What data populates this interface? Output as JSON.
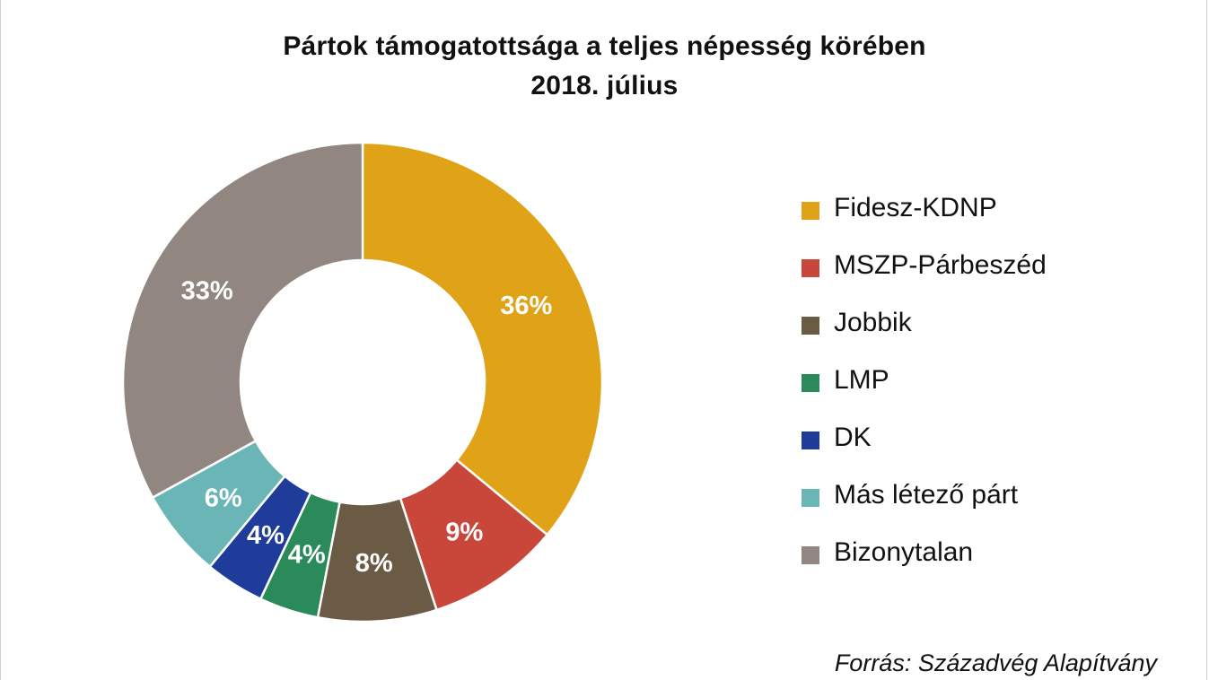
{
  "chart_data": {
    "type": "pie",
    "variant": "donut",
    "title_lines": [
      "Pártok támogatottsága a teljes népesség körében",
      "2018. július"
    ],
    "categories": [
      "Fidesz-KDNP",
      "MSZP-Párbeszéd",
      "Jobbik",
      "LMP",
      "DK",
      "Más létező párt",
      "Bizonytalan"
    ],
    "values": [
      36,
      9,
      8,
      4,
      4,
      6,
      33
    ],
    "labels": [
      "36%",
      "9%",
      "8%",
      "4%",
      "4%",
      "6%",
      "33%"
    ],
    "colors": [
      "#e0a318",
      "#c9463a",
      "#6b5b45",
      "#2a8a5a",
      "#1f3c9a",
      "#6ab6b6",
      "#918680"
    ],
    "legend_position": "right",
    "source": "Forrás: Századvég Alapítvány"
  }
}
